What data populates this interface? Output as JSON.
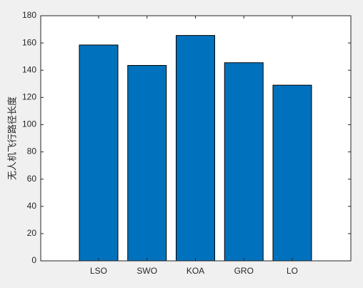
{
  "chart_data": {
    "type": "bar",
    "ylabel": "无人机飞行路径长度",
    "categories": [
      "LSO",
      "SWO",
      "KOA",
      "GRO",
      "LO"
    ],
    "values": [
      158.5,
      143.5,
      165.5,
      145.5,
      129
    ],
    "color": "#0072bd",
    "ylim": [
      0,
      180
    ],
    "yticks": [
      0,
      20,
      40,
      60,
      80,
      100,
      120,
      140,
      160,
      180
    ],
    "grid": false
  }
}
